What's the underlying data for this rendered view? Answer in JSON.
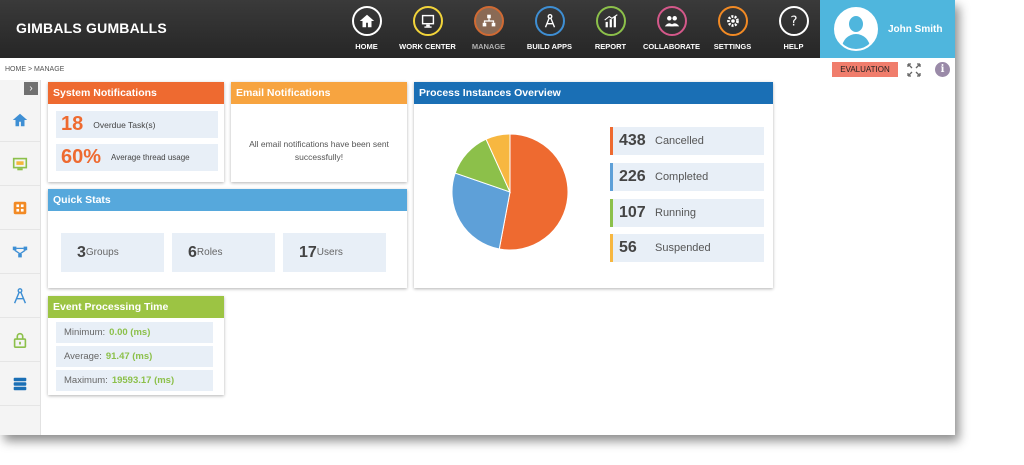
{
  "header": {
    "brand": "GIMBALS GUMBALLS",
    "nav": [
      {
        "label": "HOME",
        "icon": "home-icon",
        "color": "#ffffff"
      },
      {
        "label": "WORK CENTER",
        "icon": "work-center-icon",
        "color": "#f2d43a"
      },
      {
        "label": "MANAGE",
        "icon": "manage-icon",
        "color": "#d06a33"
      },
      {
        "label": "BUILD APPS",
        "icon": "build-apps-icon",
        "color": "#3e8fd4"
      },
      {
        "label": "REPORT",
        "icon": "report-icon",
        "color": "#8cc04a"
      },
      {
        "label": "COLLABORATE",
        "icon": "collaborate-icon",
        "color": "#d4588a"
      },
      {
        "label": "SETTINGS",
        "icon": "settings-icon",
        "color": "#f28a24"
      },
      {
        "label": "HELP",
        "icon": "help-icon",
        "color": "#888888"
      }
    ],
    "active_nav": "MANAGE",
    "user_name": "John Smith"
  },
  "breadcrumb": "HOME > MANAGE",
  "evaluation_label": "EVALUATION",
  "system_notifications": {
    "title": "System Notifications",
    "overdue_count": "18",
    "overdue_label": "Overdue Task(s)",
    "thread_usage": "60%",
    "thread_label": "Average thread usage"
  },
  "email_notifications": {
    "title": "Email Notifications",
    "message": "All email notifications have been sent successfully!"
  },
  "quick_stats": {
    "title": "Quick Stats",
    "groups_count": "3",
    "groups_label": "Groups",
    "roles_count": "6",
    "roles_label": "Roles",
    "users_count": "17",
    "users_label": "Users"
  },
  "event_processing": {
    "title": "Event Processing Time",
    "min_label": "Minimum:",
    "min_value": "0.00 (ms)",
    "avg_label": "Average:",
    "avg_value": "91.47 (ms)",
    "max_label": "Maximum:",
    "max_value": "19593.17 (ms)"
  },
  "process_instances": {
    "title": "Process Instances Overview",
    "legend": [
      {
        "count": "438",
        "label": "Cancelled",
        "color": "#ee6a30"
      },
      {
        "count": "226",
        "label": "Completed",
        "color": "#5ea0d8"
      },
      {
        "count": "107",
        "label": "Running",
        "color": "#8cc04a"
      },
      {
        "count": "56",
        "label": "Suspended",
        "color": "#f7b740"
      }
    ]
  },
  "chart_data": {
    "type": "pie",
    "categories": [
      "Cancelled",
      "Completed",
      "Running",
      "Suspended"
    ],
    "values": [
      438,
      226,
      107,
      56
    ],
    "colors": [
      "#ee6a30",
      "#5ea0d8",
      "#8cc04a",
      "#f7b740"
    ],
    "title": ""
  },
  "colors": {
    "orange_header": "#ee6a30",
    "amber_header": "#f7a440",
    "blue_header": "#1a6fb5",
    "lightblue_header": "#56a8dc",
    "green_header": "#9cc443",
    "user_panel": "#4fb6dd"
  }
}
